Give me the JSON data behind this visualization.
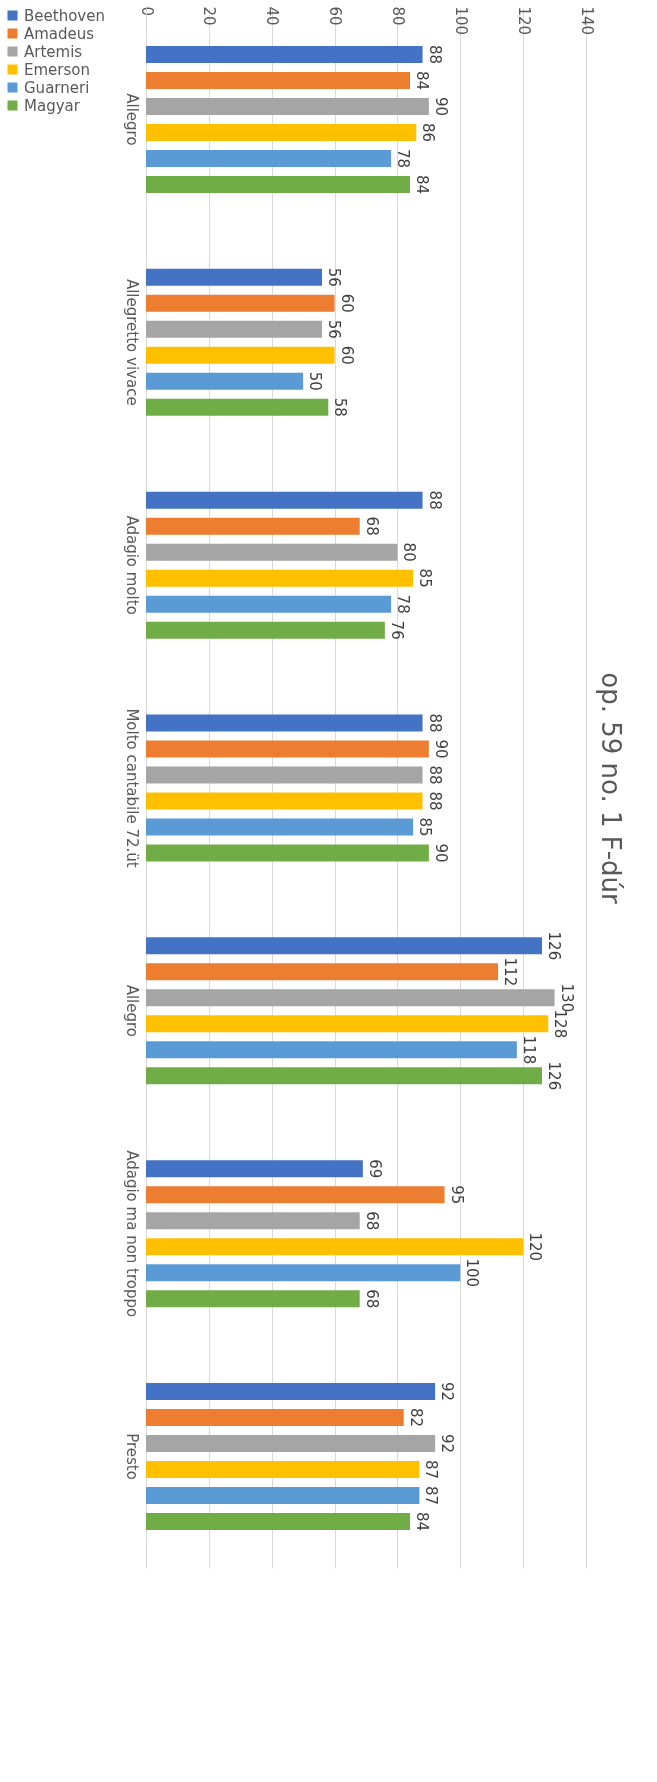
{
  "chart_data": {
    "type": "bar",
    "orientation": "horizontal",
    "title": "op. 59 no. 1 F-dúr",
    "categories": [
      "Allegro",
      "Allegretto vivace",
      "Adagio molto",
      "Molto cantabile 72.üt",
      "Allegro",
      "Adagio ma non troppo",
      "Presto"
    ],
    "series": [
      {
        "name": "Beethoven",
        "color": "#4472c4",
        "values": [
          88,
          56,
          88,
          88,
          126,
          69,
          92
        ]
      },
      {
        "name": "Amadeus",
        "color": "#ed7d31",
        "values": [
          84,
          60,
          68,
          90,
          112,
          95,
          82
        ]
      },
      {
        "name": "Artemis",
        "color": "#a5a5a5",
        "values": [
          90,
          56,
          80,
          88,
          130,
          68,
          92
        ]
      },
      {
        "name": "Emerson",
        "color": "#ffc000",
        "values": [
          86,
          60,
          85,
          88,
          128,
          120,
          87
        ]
      },
      {
        "name": "Guarneri",
        "color": "#5b9bd5",
        "values": [
          78,
          50,
          78,
          85,
          118,
          100,
          87
        ]
      },
      {
        "name": "Magyar",
        "color": "#70ad47",
        "values": [
          84,
          58,
          76,
          90,
          126,
          68,
          84
        ]
      }
    ],
    "xlim": [
      0,
      140
    ],
    "xticks": [
      0,
      20,
      40,
      60,
      80,
      100,
      120,
      140
    ],
    "grid": "x",
    "legend": "left",
    "data_labels": true
  }
}
